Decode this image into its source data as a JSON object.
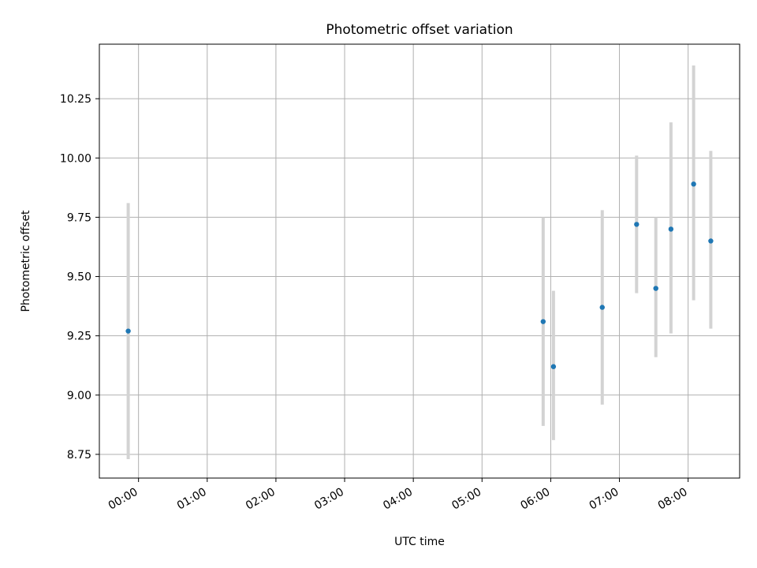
{
  "chart_data": {
    "type": "scatter",
    "title": "Photometric offset variation",
    "xlabel": "UTC time",
    "ylabel": "Photometric offset",
    "x_tick_labels": [
      "00:00",
      "01:00",
      "02:00",
      "03:00",
      "04:00",
      "05:00",
      "06:00",
      "07:00",
      "08:00"
    ],
    "x_tick_hours": [
      0,
      1,
      2,
      3,
      4,
      5,
      6,
      7,
      8
    ],
    "xlim_hours": [
      -0.57,
      8.75
    ],
    "y_ticks": [
      8.75,
      9.0,
      9.25,
      9.5,
      9.75,
      10.0,
      10.25
    ],
    "y_tick_labels": [
      "8.75",
      "9.00",
      "9.25",
      "9.50",
      "9.75",
      "10.00",
      "10.25"
    ],
    "ylim": [
      8.65,
      10.48
    ],
    "grid": true,
    "colors": {
      "point": "#1f77b4",
      "errorbar": "#d3d3d3",
      "grid": "#b0b0b0"
    },
    "points": [
      {
        "time": "23:50",
        "x_hours": -0.15,
        "y": 9.27,
        "yerr_low": 8.73,
        "yerr_high": 9.81
      },
      {
        "time": "05:53",
        "x_hours": 5.89,
        "y": 9.31,
        "yerr_low": 8.87,
        "yerr_high": 9.75
      },
      {
        "time": "06:03",
        "x_hours": 6.04,
        "y": 9.12,
        "yerr_low": 8.81,
        "yerr_high": 9.44
      },
      {
        "time": "06:45",
        "x_hours": 6.75,
        "y": 9.37,
        "yerr_low": 8.96,
        "yerr_high": 9.78
      },
      {
        "time": "07:15",
        "x_hours": 7.25,
        "y": 9.72,
        "yerr_low": 9.43,
        "yerr_high": 10.01
      },
      {
        "time": "07:32",
        "x_hours": 7.53,
        "y": 9.45,
        "yerr_low": 9.16,
        "yerr_high": 9.75
      },
      {
        "time": "07:45",
        "x_hours": 7.75,
        "y": 9.7,
        "yerr_low": 9.26,
        "yerr_high": 10.15
      },
      {
        "time": "08:05",
        "x_hours": 8.08,
        "y": 9.89,
        "yerr_low": 9.4,
        "yerr_high": 10.39
      },
      {
        "time": "08:20",
        "x_hours": 8.33,
        "y": 9.65,
        "yerr_low": 9.28,
        "yerr_high": 10.03
      }
    ]
  }
}
